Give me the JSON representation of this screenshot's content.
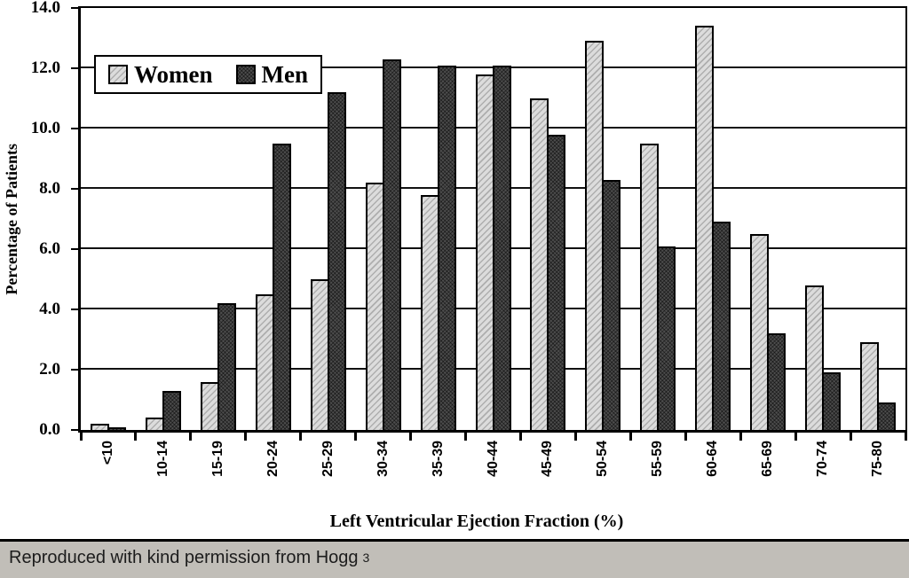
{
  "chart_data": {
    "type": "bar",
    "title": "",
    "categories": [
      "<10",
      "10-14",
      "15-19",
      "20-24",
      "25-29",
      "30-34",
      "35-39",
      "40-44",
      "45-49",
      "50-54",
      "55-59",
      "60-64",
      "65-69",
      "70-74",
      "75-80"
    ],
    "series": [
      {
        "name": "Women",
        "color": "#d8d8d8",
        "hatch": "light-diagonal",
        "values": [
          0.2,
          0.4,
          1.6,
          4.5,
          5.0,
          8.2,
          7.8,
          11.8,
          11.0,
          12.9,
          9.5,
          13.4,
          6.5,
          4.8,
          2.9
        ]
      },
      {
        "name": "Men",
        "color": "#4d4d4d",
        "hatch": "dark-dotted",
        "values": [
          0.1,
          1.3,
          4.2,
          9.5,
          11.2,
          12.3,
          12.1,
          12.1,
          9.8,
          8.3,
          6.1,
          6.9,
          3.2,
          1.9,
          0.9
        ]
      }
    ],
    "xlabel": "Left Ventricular Ejection Fraction (%)",
    "ylabel": "Percentage of Patients",
    "ylim": [
      0,
      14
    ],
    "ytick_step": 2,
    "ytick_labels": [
      "0.0",
      "2.0",
      "4.0",
      "6.0",
      "8.0",
      "10.0",
      "12.0",
      "14.0"
    ],
    "grid": "horizontal",
    "legend_position": "top-left-inside"
  },
  "caption": {
    "text": "Reproduced with kind permission from Hogg",
    "reference_superscript": "3"
  },
  "colors": {
    "women_bar": "#d8d8d8",
    "men_bar": "#4d4d4d",
    "axis": "#000000",
    "caption_background": "#c1beb8",
    "background": "#ffffff"
  }
}
